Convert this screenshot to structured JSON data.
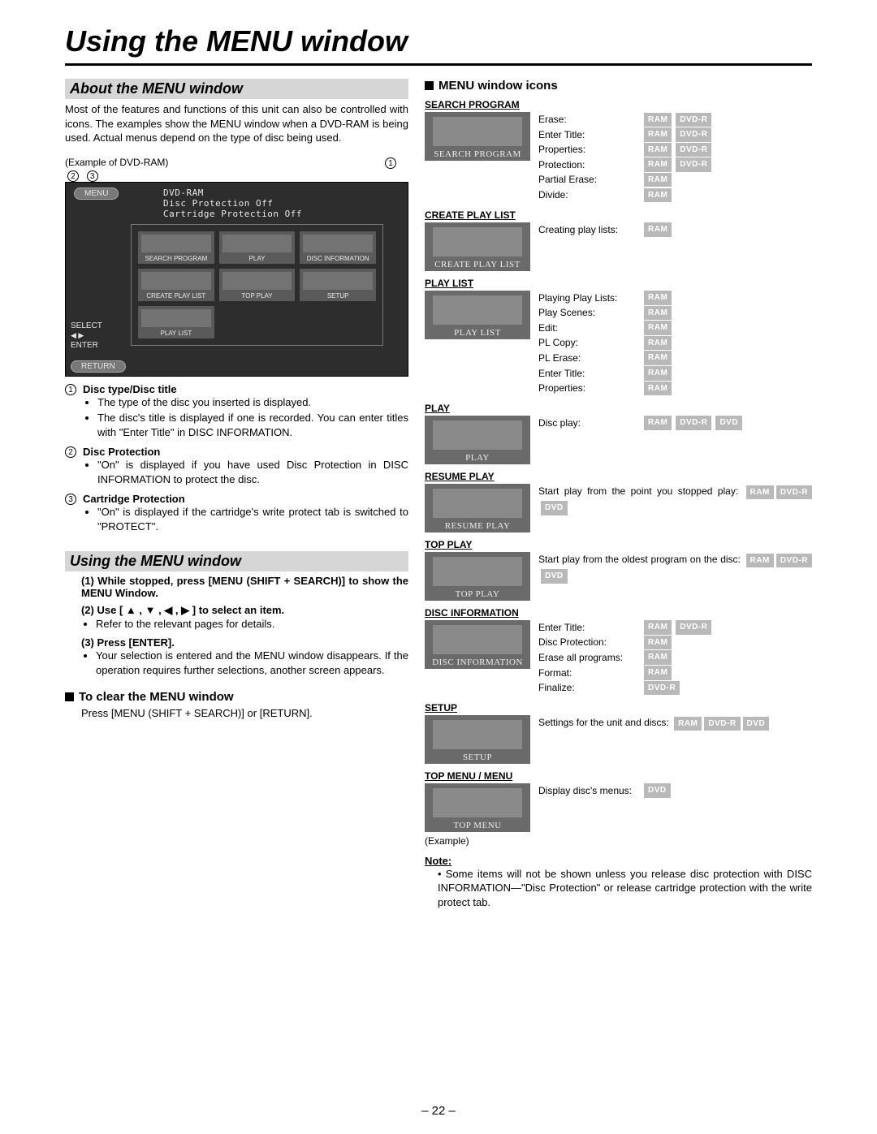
{
  "page_title": "Using the MENU window",
  "page_number": "– 22 –",
  "left": {
    "about_hdr": "About the MENU window",
    "about_body": "Most of the features and functions of this unit can also be controlled with icons. The examples show the MENU window when a DVD-RAM is being used. Actual menus depend on the type of disc being used.",
    "example_lbl": "(Example of DVD-RAM)",
    "callouts": [
      "1",
      "2",
      "3"
    ],
    "screenshot": {
      "menu": "MENU",
      "line1": "DVD-RAM",
      "line2": "Disc Protection  Off",
      "line3": "Cartridge Protection  Off",
      "cells": [
        "SEARCH PROGRAM",
        "PLAY",
        "DISC INFORMATION",
        "CREATE PLAY LIST",
        "TOP PLAY",
        "SETUP",
        "PLAY LIST",
        "",
        ""
      ],
      "select": "SELECT",
      "enter": "ENTER",
      "return": "RETURN"
    },
    "numbered": [
      {
        "n": "1",
        "title": "Disc type/Disc title",
        "bullets": [
          "The type of the disc you inserted is displayed.",
          "The disc's title is displayed if one is recorded. You can enter titles with \"Enter Title\" in DISC INFORMATION."
        ]
      },
      {
        "n": "2",
        "title": "Disc Protection",
        "bullets": [
          "\"On\" is displayed if you have used Disc Protection in DISC INFORMATION to protect the disc."
        ]
      },
      {
        "n": "3",
        "title": "Cartridge Protection",
        "bullets": [
          "\"On\" is displayed if the cartridge's write protect tab is switched to \"PROTECT\"."
        ]
      }
    ],
    "using_hdr": "Using the MENU window",
    "steps": [
      {
        "h": "(1) While stopped, press [MENU (SHIFT + SEARCH)] to show the MENU Window.",
        "bullets": []
      },
      {
        "h": "(2) Use [ ▲ , ▼ , ◀ , ▶ ] to select an item.",
        "bullets": [
          "Refer to the relevant pages for details."
        ]
      },
      {
        "h": "(3) Press [ENTER].",
        "bullets": [
          "Your selection is entered and the MENU window disappears. If the operation requires further selections, another screen appears."
        ]
      }
    ],
    "clear_hdr": "To clear the MENU window",
    "clear_body": "Press [MENU (SHIFT + SEARCH)] or [RETURN]."
  },
  "right": {
    "section_hdr": "MENU window icons",
    "badges": {
      "RAM": "RAM",
      "DVDR": "DVD-R",
      "DVD": "DVD"
    },
    "blocks": [
      {
        "title": "SEARCH PROGRAM",
        "thumb": "SEARCH PROGRAM",
        "lines": [
          {
            "label": "Erase:",
            "badges": [
              "RAM",
              "DVDR"
            ]
          },
          {
            "label": "Enter Title:",
            "badges": [
              "RAM",
              "DVDR"
            ]
          },
          {
            "label": "Properties:",
            "badges": [
              "RAM",
              "DVDR"
            ]
          },
          {
            "label": "Protection:",
            "badges": [
              "RAM",
              "DVDR"
            ]
          },
          {
            "label": "Partial Erase:",
            "badges": [
              "RAM"
            ]
          },
          {
            "label": "Divide:",
            "badges": [
              "RAM"
            ]
          }
        ]
      },
      {
        "title": "CREATE PLAY LIST",
        "thumb": "CREATE PLAY LIST",
        "lines": [
          {
            "label": "Creating play lists:",
            "badges": [
              "RAM"
            ]
          }
        ]
      },
      {
        "title": "PLAY LIST",
        "thumb": "PLAY LIST",
        "lines": [
          {
            "label": "Playing Play Lists:",
            "badges": [
              "RAM"
            ]
          },
          {
            "label": "Play Scenes:",
            "badges": [
              "RAM"
            ]
          },
          {
            "label": "Edit:",
            "badges": [
              "RAM"
            ]
          },
          {
            "label": "PL Copy:",
            "badges": [
              "RAM"
            ]
          },
          {
            "label": "PL Erase:",
            "badges": [
              "RAM"
            ]
          },
          {
            "label": "Enter Title:",
            "badges": [
              "RAM"
            ]
          },
          {
            "label": "Properties:",
            "badges": [
              "RAM"
            ]
          }
        ]
      },
      {
        "title": "PLAY",
        "thumb": "PLAY",
        "lines": [
          {
            "label": "Disc play:",
            "badges": [
              "RAM",
              "DVDR",
              "DVD"
            ]
          }
        ]
      },
      {
        "title": "RESUME PLAY",
        "thumb": "RESUME PLAY",
        "text_before": "Start play from the point you stopped play:",
        "badges_inline": [
          "RAM",
          "DVDR",
          "DVD"
        ]
      },
      {
        "title": "TOP PLAY",
        "thumb": "TOP PLAY",
        "text_before": "Start play from the oldest program on the disc:",
        "badges_inline": [
          "RAM",
          "DVDR",
          "DVD"
        ]
      },
      {
        "title": "DISC INFORMATION",
        "thumb": "DISC INFORMATION",
        "lines": [
          {
            "label": "Enter Title:",
            "badges": [
              "RAM",
              "DVDR"
            ]
          },
          {
            "label": "Disc Protection:",
            "badges": [
              "RAM"
            ]
          },
          {
            "label": "Erase all programs:",
            "badges": [
              "RAM"
            ]
          },
          {
            "label": "Format:",
            "badges": [
              "RAM"
            ]
          },
          {
            "label": "Finalize:",
            "badges": [
              "DVDR"
            ]
          }
        ]
      },
      {
        "title": "SETUP",
        "thumb": "SETUP",
        "text_before": "Settings for the unit and discs:",
        "badges_inline": [
          "RAM",
          "DVDR",
          "DVD"
        ]
      },
      {
        "title": "TOP MENU / MENU",
        "thumb": "TOP MENU",
        "lines": [
          {
            "label": "Display disc's menus:",
            "badges": [
              "DVD"
            ]
          }
        ],
        "after": "(Example)"
      }
    ],
    "note_h": "Note:",
    "note_body": "Some items will not be shown unless you release disc protection with DISC INFORMATION—\"Disc Protection\" or release cartridge protection with the write protect tab."
  }
}
